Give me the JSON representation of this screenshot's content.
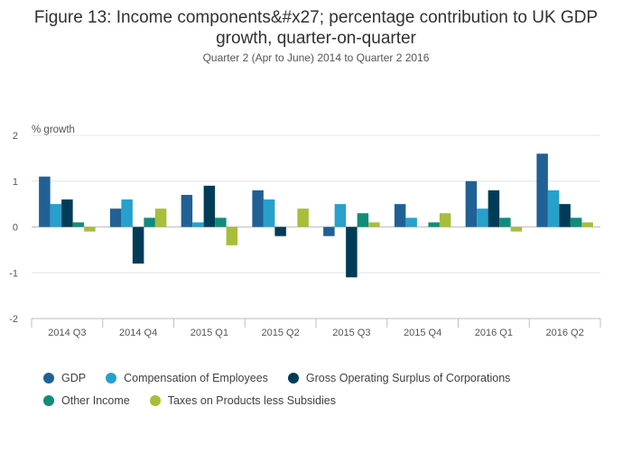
{
  "title_line1": "Figure 13: Income components&#x27; percentage contribution to UK GDP",
  "title_line2": "growth, quarter-on-quarter",
  "subtitle": "Quarter 2 (Apr to June) 2014 to Quarter 2 2016",
  "chart_data": {
    "type": "bar",
    "title": "Figure 13: Income components&#x27; percentage contribution to UK GDP growth, quarter-on-quarter",
    "subtitle": "Quarter 2 (Apr to June) 2014 to Quarter 2 2016",
    "ylabel": "% growth",
    "xlabel": "",
    "ylim": [
      -2,
      2
    ],
    "yticks": [
      2,
      1,
      0,
      -1,
      -2
    ],
    "grid": true,
    "legend_position": "bottom",
    "categories": [
      "2014 Q3",
      "2014 Q4",
      "2015 Q1",
      "2015 Q2",
      "2015 Q3",
      "2015 Q4",
      "2016 Q1",
      "2016 Q2"
    ],
    "series": [
      {
        "name": "GDP",
        "color": "#206095",
        "values": [
          1.1,
          0.4,
          0.7,
          0.8,
          -0.2,
          0.5,
          1.0,
          1.6
        ]
      },
      {
        "name": "Compensation of Employees",
        "color": "#27a0cc",
        "values": [
          0.5,
          0.6,
          0.1,
          0.6,
          0.5,
          0.2,
          0.4,
          0.8
        ]
      },
      {
        "name": "Gross Operating Surplus of Corporations",
        "color": "#003c57",
        "values": [
          0.6,
          -0.8,
          0.9,
          -0.2,
          -1.1,
          0.0,
          0.8,
          0.5
        ]
      },
      {
        "name": "Other Income",
        "color": "#118c7b",
        "values": [
          0.1,
          0.2,
          0.2,
          0.0,
          0.3,
          0.1,
          0.2,
          0.2
        ]
      },
      {
        "name": "Taxes on Products less Subsidies",
        "color": "#a8bd3a",
        "values": [
          -0.1,
          0.4,
          -0.4,
          0.4,
          0.1,
          0.3,
          -0.1,
          0.1
        ]
      }
    ]
  }
}
